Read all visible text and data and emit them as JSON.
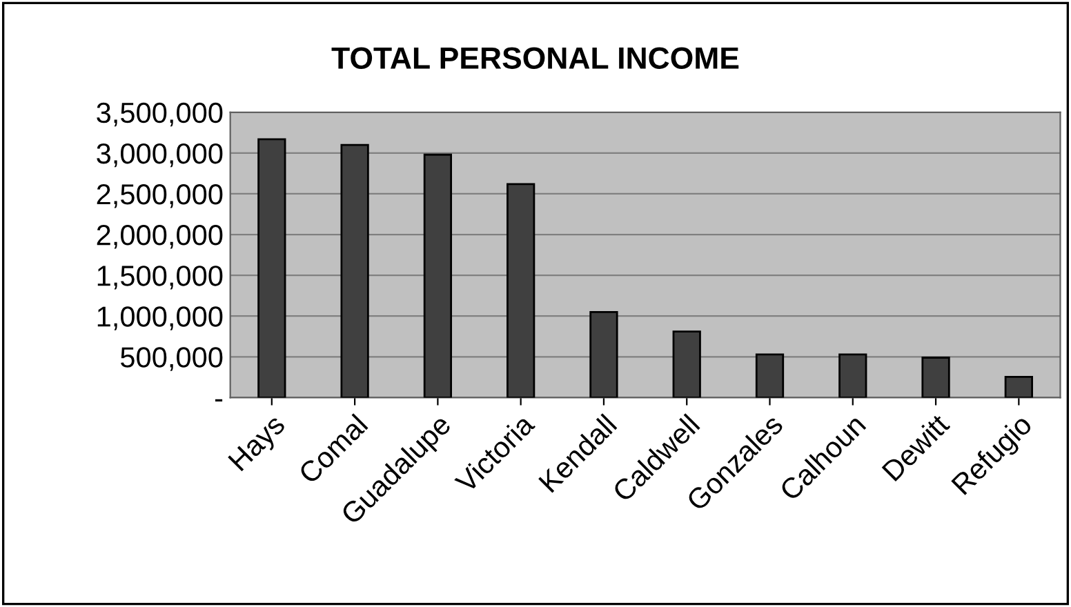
{
  "chart_data": {
    "type": "bar",
    "title": "TOTAL PERSONAL INCOME",
    "categories": [
      "Hays",
      "Comal",
      "Guadalupe",
      "Victoria",
      "Kendall",
      "Caldwell",
      "Gonzales",
      "Calhoun",
      "Dewitt",
      "Refugio"
    ],
    "values": [
      3170000,
      3100000,
      2980000,
      2620000,
      1050000,
      810000,
      530000,
      530000,
      490000,
      255000
    ],
    "color": "#404040",
    "ylim": [
      0,
      3500000
    ],
    "yticks": [
      {
        "value": 0,
        "label": "-"
      },
      {
        "value": 500000,
        "label": "500,000"
      },
      {
        "value": 1000000,
        "label": "1,000,000"
      },
      {
        "value": 1500000,
        "label": "1,500,000"
      },
      {
        "value": 2000000,
        "label": "2,000,000"
      },
      {
        "value": 2500000,
        "label": "2,500,000"
      },
      {
        "value": 3000000,
        "label": "3,000,000"
      },
      {
        "value": 3500000,
        "label": "3,500,000"
      }
    ],
    "grid": "y",
    "legend": false
  }
}
